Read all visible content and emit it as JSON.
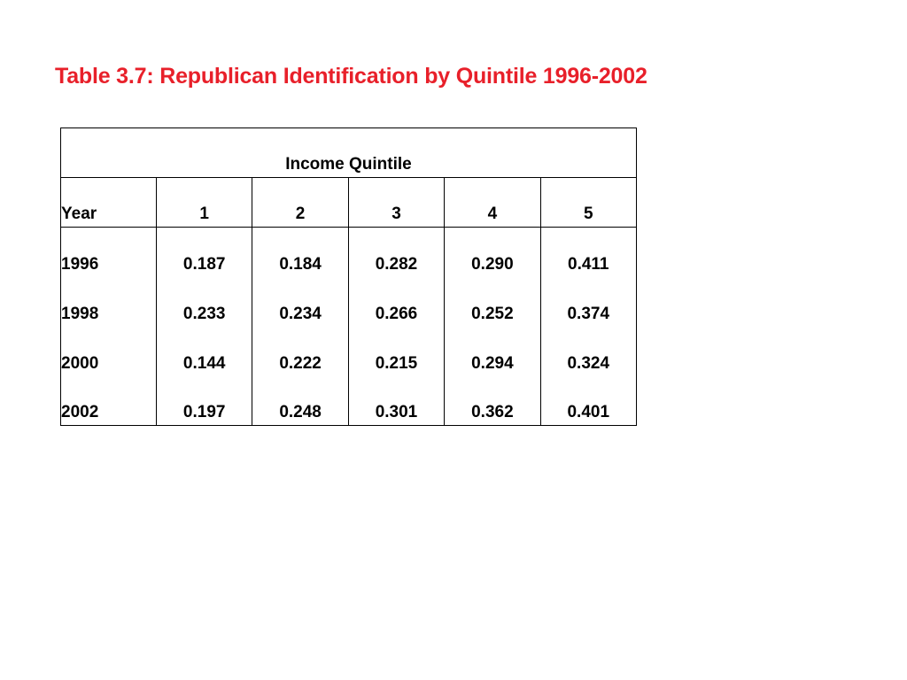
{
  "title": "Table 3.7:  Republican Identification by Quintile 1996-2002",
  "table": {
    "group_header": "Income Quintile",
    "year_header": "Year",
    "quintile_headers": [
      "1",
      "2",
      "3",
      "4",
      "5"
    ],
    "rows": [
      {
        "year": "1996",
        "values": [
          "0.187",
          "0.184",
          "0.282",
          "0.290",
          "0.411"
        ]
      },
      {
        "year": "1998",
        "values": [
          "0.233",
          "0.234",
          "0.266",
          "0.252",
          "0.374"
        ]
      },
      {
        "year": "2000",
        "values": [
          "0.144",
          "0.222",
          "0.215",
          "0.294",
          "0.324"
        ]
      },
      {
        "year": "2002",
        "values": [
          "0.197",
          "0.248",
          "0.301",
          "0.362",
          "0.401"
        ]
      }
    ]
  },
  "colors": {
    "title": "#e8202a",
    "text": "#000000",
    "background": "#ffffff"
  }
}
